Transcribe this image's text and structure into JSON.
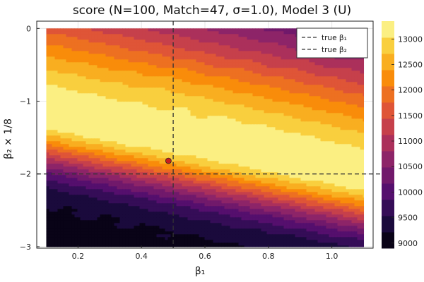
{
  "chart_data": {
    "type": "heatmap",
    "subtype": "filled-contour",
    "title": "score (N=100, Match=47, σ=1.0), Model 3 (U)",
    "xlabel": "β₁",
    "ylabel": "β₂ × 1/8",
    "xlim": [
      0.07,
      1.13
    ],
    "ylim": [
      -3.02,
      0.1
    ],
    "data_x_range": [
      0.1,
      1.1
    ],
    "data_y_range": [
      -3.0,
      0.0
    ],
    "x_ticks": [
      0.2,
      0.4,
      0.6,
      0.8,
      1.0
    ],
    "x_tick_labels": [
      "0.2",
      "0.4",
      "0.6",
      "0.8",
      "1.0"
    ],
    "y_ticks": [
      0,
      -1,
      -2,
      -3
    ],
    "y_tick_labels": [
      "0",
      "−1",
      "−2",
      "−3"
    ],
    "grid": true,
    "colormap": "inferno",
    "colorbar": {
      "range": [
        8900,
        13350
      ],
      "ticks": [
        9000,
        9500,
        10000,
        10500,
        11000,
        11500,
        12000,
        12500,
        13000
      ],
      "tick_labels": [
        "9000",
        "9500",
        "10000",
        "10500",
        "11000",
        "11500",
        "12000",
        "12500",
        "13000"
      ]
    },
    "score_model": {
      "peak_value": 13300,
      "peak_location": [
        0.5,
        -1.55
      ],
      "ridge_slope": -0.85,
      "floor_value": 8900
    },
    "true_beta1": 0.5,
    "true_beta2": -2.0,
    "estimate_point": {
      "x": 0.485,
      "y": -1.82,
      "color": "#c81e1e"
    },
    "legend": {
      "position": "top-right",
      "entries": [
        {
          "label": "true β₁",
          "style": "dashed",
          "color": "#333333"
        },
        {
          "label": "true β₂",
          "style": "dashed",
          "color": "#333333"
        }
      ]
    }
  }
}
